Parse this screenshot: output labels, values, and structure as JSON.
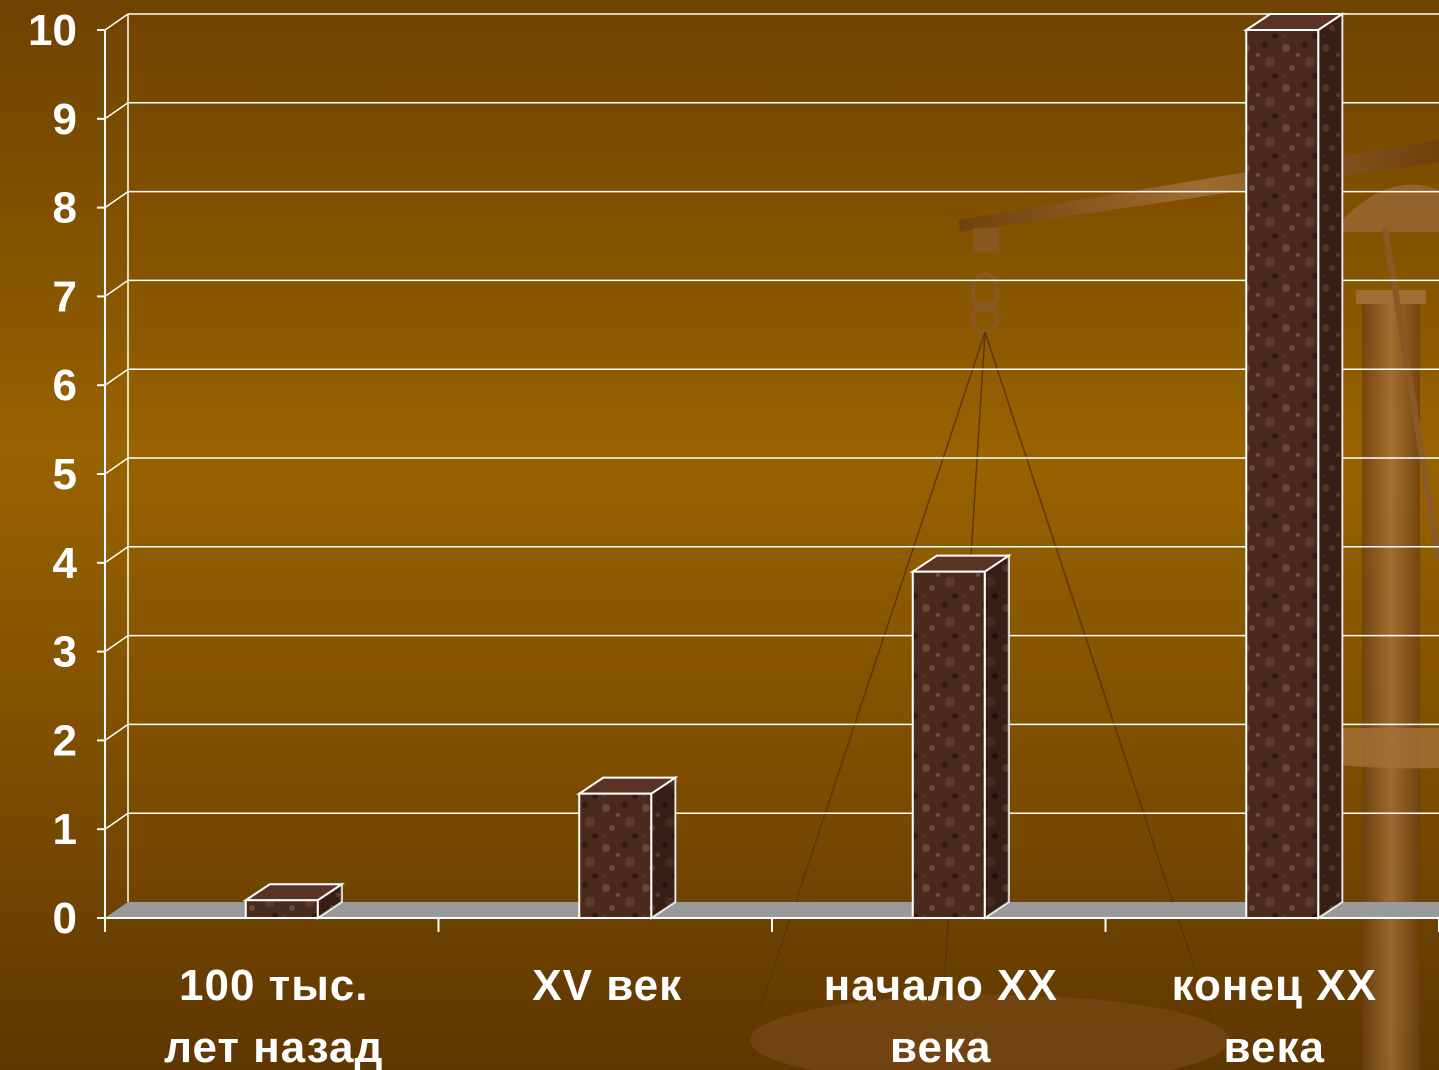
{
  "chart_data": {
    "type": "bar",
    "title": "",
    "xlabel": "",
    "ylabel": "",
    "ylim": [
      0,
      10
    ],
    "yticks": [
      0,
      1,
      2,
      3,
      4,
      5,
      6,
      7,
      8,
      9,
      10
    ],
    "categories": [
      [
        "100 тыс.",
        "лет назад"
      ],
      [
        "XV век"
      ],
      [
        "начало XX",
        "века"
      ],
      [
        "конец XX",
        "века"
      ]
    ],
    "values": [
      0.2,
      1.4,
      3.9,
      10
    ],
    "grid": true,
    "legend": "none",
    "bar_style": "3d",
    "colors": {
      "bar_front": "#4a2a1c",
      "bar_top": "#5a3324",
      "bar_side": "#3a1f14",
      "bar_outline": "#ffffff",
      "grid": "#ffffff",
      "floor": "#9a9a9a",
      "text": "#ffffff"
    }
  },
  "decor": {
    "background_image": "balance-scale",
    "icon": "scale-icon"
  }
}
